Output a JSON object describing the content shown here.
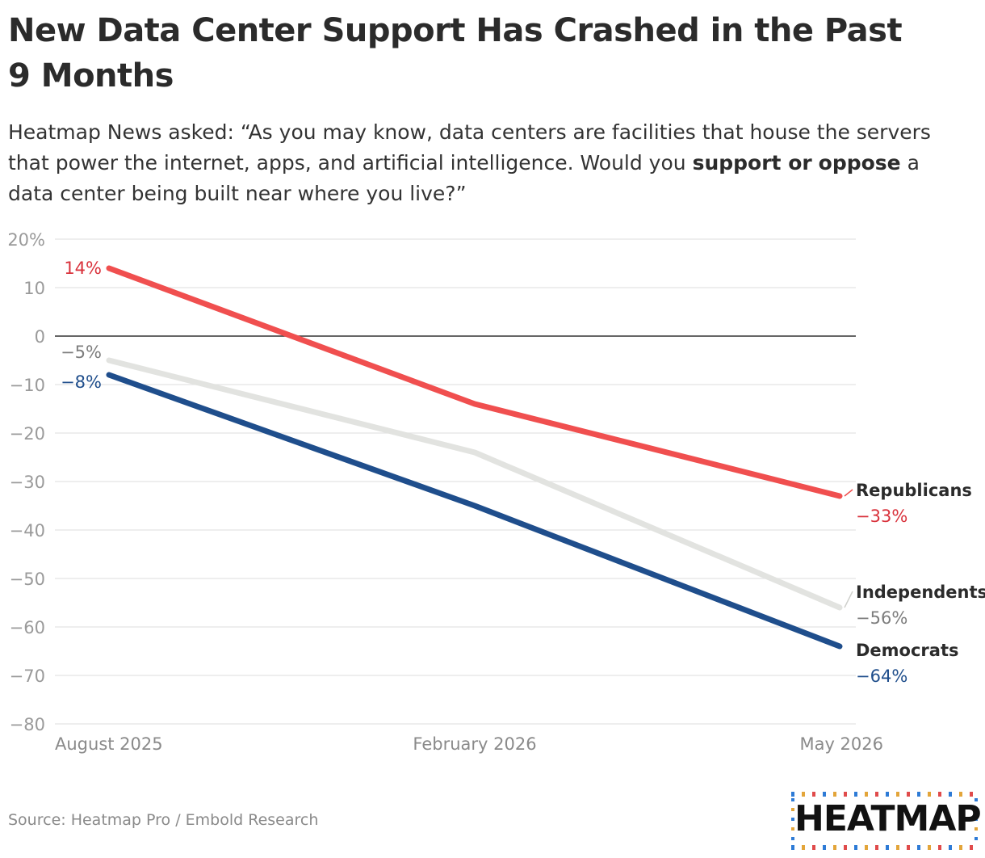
{
  "header": {
    "title": "New Data Center Support Has Crashed in the Past 9 Months",
    "subtitle_part1": "Heatmap News asked: “As you may know, data centers are facilities that house the servers that power the internet, apps, and artificial intelligence. Would you ",
    "subtitle_bold1": "support or",
    "subtitle_bold2": "oppose",
    "subtitle_part2": " a data center being built near where you live?”"
  },
  "footer": {
    "source": "Source: Heatmap Pro / Embold Research",
    "logo_text": "HEATMAP"
  },
  "chart_data": {
    "type": "line",
    "x": [
      "August 2025",
      "February 2026",
      "May 2026"
    ],
    "y_ticks": [
      20,
      10,
      0,
      -10,
      -20,
      -30,
      -40,
      -50,
      -60,
      -70,
      -80
    ],
    "y_tick_labels": [
      "20%",
      "10",
      "0",
      "−10",
      "−20",
      "−30",
      "−40",
      "−50",
      "−60",
      "−70",
      "−80"
    ],
    "ylim": [
      -80,
      20
    ],
    "grid": true,
    "zero_line": true,
    "series": [
      {
        "name": "Independents",
        "values": [
          -5,
          -24,
          -56
        ],
        "color": "#e2e3e0",
        "label_color": "#7d7d7d",
        "start_label": "−5%",
        "end_label": "−56%"
      },
      {
        "name": "Democrats",
        "values": [
          -8,
          -35,
          -64
        ],
        "color": "#1f4e8c",
        "label_color": "#1f4e8c",
        "start_label": "−8%",
        "end_label": "−64%"
      },
      {
        "name": "Republicans",
        "values": [
          14,
          -14,
          -33
        ],
        "color": "#f04f4f",
        "label_color": "#d9323c",
        "start_label": "14%",
        "end_label": "−33%"
      }
    ]
  }
}
